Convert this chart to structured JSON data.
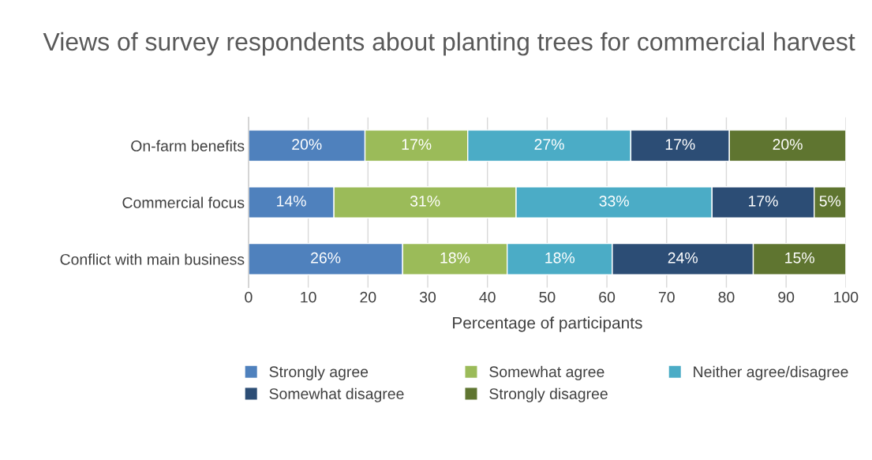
{
  "chart_data": {
    "type": "bar",
    "orientation": "horizontal",
    "stacked": true,
    "title": "Views of survey respondents about planting trees for commercial harvest",
    "xlabel": "Percentage of participants",
    "categories": [
      "On-farm benefits",
      "Commercial focus",
      "Conflict with main business"
    ],
    "series": [
      {
        "name": "Strongly agree",
        "color": "#4f81bd",
        "values": [
          19.5,
          14.3,
          25.8
        ],
        "value_labels": [
          "20%",
          "14%",
          "26%"
        ]
      },
      {
        "name": "Somewhat agree",
        "color": "#9bbb59",
        "values": [
          17.2,
          30.5,
          17.5
        ],
        "value_labels": [
          "17%",
          "31%",
          "18%"
        ]
      },
      {
        "name": "Neither agree/disagree",
        "color": "#4bacc6",
        "values": [
          27.3,
          32.8,
          17.6
        ],
        "value_labels": [
          "27%",
          "33%",
          "18%"
        ]
      },
      {
        "name": "Somewhat disagree",
        "color": "#2c4d75",
        "values": [
          16.5,
          17.1,
          23.6
        ],
        "value_labels": [
          "17%",
          "17%",
          "24%"
        ]
      },
      {
        "name": "Strongly disagree",
        "color": "#5f7530",
        "values": [
          19.5,
          5.3,
          15.5
        ],
        "value_labels": [
          "20%",
          "5%",
          "15%"
        ]
      }
    ],
    "xlim": [
      0,
      100
    ],
    "xticks": [
      0,
      10,
      20,
      30,
      40,
      50,
      60,
      70,
      80,
      90,
      100
    ],
    "grid": "x",
    "legend": "bottom"
  }
}
